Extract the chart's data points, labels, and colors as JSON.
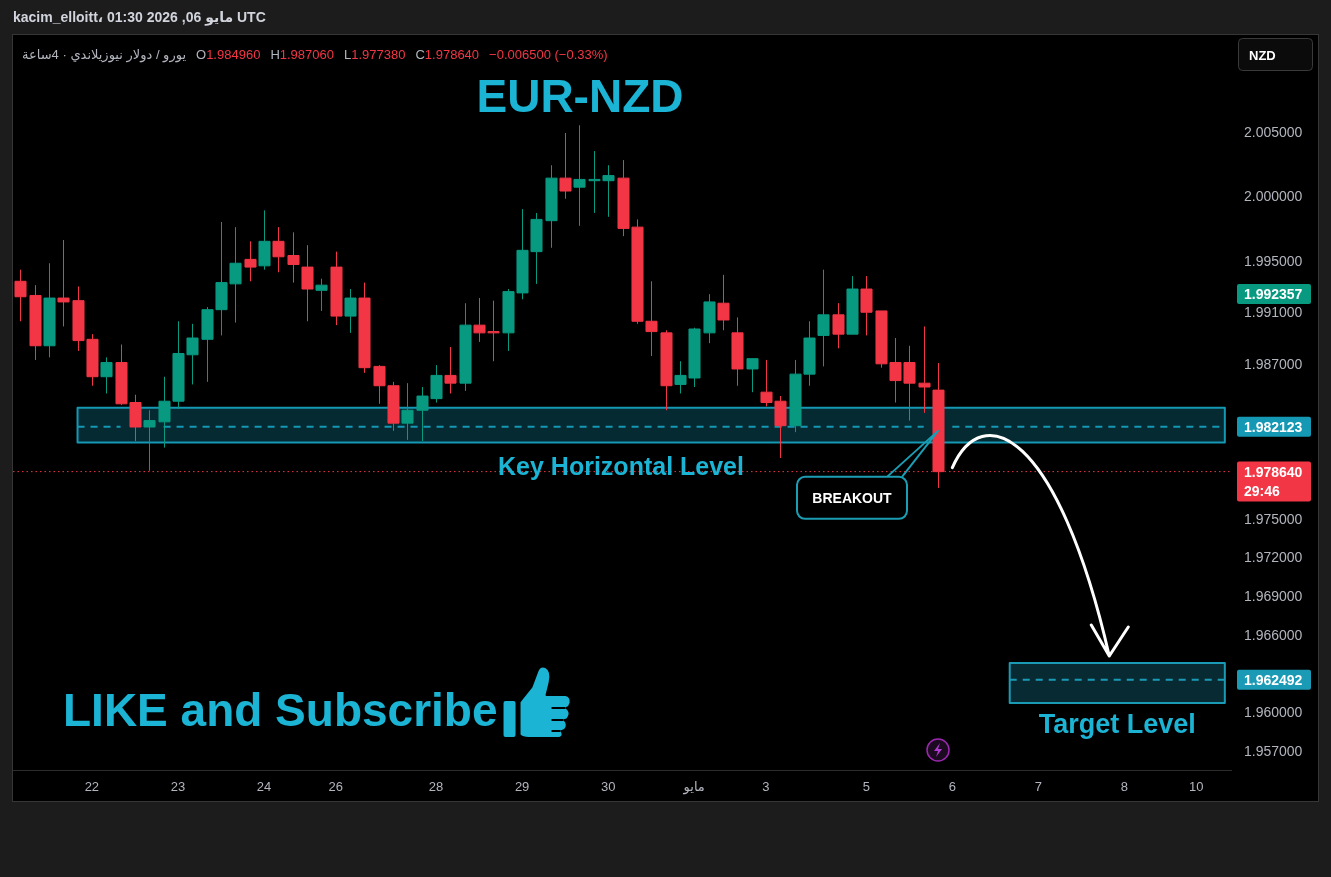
{
  "chart_data": {
    "type": "candlestick",
    "title": "EUR-NZD",
    "subtitle": "يورو / دولار نيوزيلاندي · 4ساعة",
    "ylabel": "NZD",
    "categories": [
      null,
      null,
      null,
      null,
      null,
      "22",
      null,
      null,
      null,
      null,
      null,
      "23",
      null,
      null,
      null,
      null,
      null,
      "24",
      null,
      null,
      null,
      null,
      "26",
      null,
      null,
      null,
      null,
      null,
      null,
      "28",
      null,
      null,
      null,
      null,
      null,
      "29",
      null,
      null,
      null,
      null,
      null,
      "30",
      null,
      null,
      null,
      null,
      null,
      "مايو",
      null,
      null,
      null,
      null,
      "3",
      null,
      null,
      null,
      null,
      null,
      null,
      "5",
      null,
      null,
      null,
      null,
      null,
      "6",
      null,
      null,
      null,
      null,
      null,
      "7",
      null,
      null,
      null,
      null,
      null,
      "8",
      null,
      null,
      null,
      null,
      "10",
      null,
      null
    ],
    "ohlc": [
      [
        1.9934,
        1.9943,
        1.9903,
        1.9922
      ],
      [
        1.9923,
        1.9931,
        1.9873,
        1.9884
      ],
      [
        1.9884,
        1.9948,
        1.9875,
        1.9921
      ],
      [
        1.9921,
        1.9966,
        1.9899,
        1.9918
      ],
      [
        1.9919,
        1.993,
        1.988,
        1.9888
      ],
      [
        1.9889,
        1.9893,
        1.9853,
        1.986
      ],
      [
        1.986,
        1.9875,
        1.9847,
        1.9871
      ],
      [
        1.9871,
        1.9885,
        1.9838,
        1.9839
      ],
      [
        1.984,
        1.9846,
        1.981,
        1.9821
      ],
      [
        1.9821,
        1.9834,
        1.9787,
        1.9826
      ],
      [
        1.9825,
        1.986,
        1.9805,
        1.9841
      ],
      [
        1.9841,
        1.9903,
        1.9835,
        1.9878
      ],
      [
        1.9877,
        1.9901,
        1.9854,
        1.989
      ],
      [
        1.9889,
        1.9914,
        1.9856,
        1.9912
      ],
      [
        1.9912,
        1.998,
        1.9892,
        1.9933
      ],
      [
        1.9932,
        1.9976,
        1.9902,
        1.9948
      ],
      [
        1.9951,
        1.9965,
        1.9934,
        1.9945
      ],
      [
        1.9946,
        1.9989,
        1.9943,
        1.9965
      ],
      [
        1.9965,
        1.9976,
        1.9941,
        1.9953
      ],
      [
        1.9954,
        1.9972,
        1.9933,
        1.9947
      ],
      [
        1.9945,
        1.9962,
        1.9903,
        1.9928
      ],
      [
        1.9927,
        1.9936,
        1.9911,
        1.9931
      ],
      [
        1.9945,
        1.9957,
        1.99,
        1.9907
      ],
      [
        1.9907,
        1.9928,
        1.9894,
        1.9921
      ],
      [
        1.9921,
        1.9933,
        1.9863,
        1.9867
      ],
      [
        1.9868,
        1.9869,
        1.9839,
        1.9853
      ],
      [
        1.9853,
        1.9856,
        1.9818,
        1.9824
      ],
      [
        1.9824,
        1.9855,
        1.9811,
        1.9834
      ],
      [
        1.9834,
        1.9852,
        1.981,
        1.9845
      ],
      [
        1.9843,
        1.9869,
        1.984,
        1.9861
      ],
      [
        1.9861,
        1.9883,
        1.9847,
        1.9855
      ],
      [
        1.9855,
        1.9917,
        1.9849,
        1.99
      ],
      [
        1.99,
        1.9921,
        1.9887,
        1.9894
      ],
      [
        1.9895,
        1.9919,
        1.9872,
        1.9894
      ],
      [
        1.9894,
        1.9928,
        1.988,
        1.9926
      ],
      [
        1.9925,
        1.999,
        1.992,
        1.9958
      ],
      [
        1.9957,
        1.9987,
        1.9932,
        1.9982
      ],
      [
        1.9981,
        2.0024,
        1.996,
        2.0014
      ],
      [
        2.0014,
        2.0049,
        1.9998,
        2.0004
      ],
      [
        2.0007,
        2.0055,
        1.9977,
        2.0013
      ],
      [
        2.0012,
        2.0035,
        1.9987,
        2.0013
      ],
      [
        2.0012,
        2.0024,
        1.9984,
        2.0016
      ],
      [
        2.0014,
        2.0028,
        1.9969,
        1.9975
      ],
      [
        1.9976,
        1.9982,
        1.9901,
        1.9903
      ],
      [
        1.9903,
        1.9934,
        1.9876,
        1.9895
      ],
      [
        1.9894,
        1.9896,
        1.9834,
        1.9853
      ],
      [
        1.9854,
        1.9872,
        1.9847,
        1.9861
      ],
      [
        1.9859,
        1.9898,
        1.9852,
        1.9897
      ],
      [
        1.9894,
        1.9924,
        1.9886,
        1.9918
      ],
      [
        1.9917,
        1.9939,
        1.9896,
        1.9904
      ],
      [
        1.9894,
        1.9906,
        1.9853,
        1.9866
      ],
      [
        1.9866,
        1.9874,
        1.9848,
        1.9874
      ],
      [
        1.9848,
        1.9873,
        1.9837,
        1.984
      ],
      [
        1.9841,
        1.9845,
        1.9797,
        1.9822
      ],
      [
        1.9822,
        1.9873,
        1.9817,
        1.9862
      ],
      [
        1.9862,
        1.9903,
        1.9853,
        1.989
      ],
      [
        1.9892,
        1.9943,
        1.9868,
        1.9908
      ],
      [
        1.9908,
        1.9917,
        1.9882,
        1.9893
      ],
      [
        1.9893,
        1.9938,
        1.9893,
        1.9928
      ],
      [
        1.9928,
        1.9938,
        1.9892,
        1.991
      ],
      [
        1.9911,
        1.9911,
        1.9867,
        1.987
      ],
      [
        1.9871,
        1.989,
        1.984,
        1.9857
      ],
      [
        1.9871,
        1.9884,
        1.9826,
        1.9855
      ],
      [
        1.9855,
        1.9899,
        1.9832,
        1.9852
      ],
      [
        1.98496,
        1.98706,
        1.97738,
        1.97864
      ],
      null,
      null,
      null,
      null,
      null,
      null,
      null,
      null,
      null,
      null,
      null,
      null,
      null,
      null,
      null,
      null,
      null,
      null,
      null,
      null
    ],
    "colors": [
      "#f23645",
      "#f23645",
      "#089981",
      "#f23645",
      "#f23645",
      "#f23645",
      "#089981",
      "#f23645",
      "#f23645",
      "#089981",
      "#089981",
      "#089981",
      "#089981",
      "#089981",
      "#089981",
      "#089981",
      "#f23645",
      "#089981",
      "#f23645",
      "#f23645",
      "#f23645",
      "#089981",
      "#f23645",
      "#089981",
      "#f23645",
      "#f23645",
      "#f23645",
      "#089981",
      "#089981",
      "#089981",
      "#f23645",
      "#089981",
      "#f23645",
      "#f23645",
      "#089981",
      "#089981",
      "#089981",
      "#089981",
      "#f23645",
      "#089981",
      "#089981",
      "#089981",
      "#f23645",
      "#f23645",
      "#f23645",
      "#f23645",
      "#089981",
      "#089981",
      "#089981",
      "#f23645",
      "#f23645",
      "#089981",
      "#f23645",
      "#f23645",
      "#089981",
      "#089981",
      "#089981",
      "#f23645",
      "#089981",
      "#f23645",
      "#f23645",
      "#f23645",
      "#f23645",
      "#f23645",
      "#f23645",
      null,
      null,
      null,
      null,
      null,
      null,
      null,
      null,
      null,
      null,
      null,
      null,
      null,
      null,
      null,
      null,
      null,
      null,
      null,
      null
    ],
    "ylim": [
      1.9555,
      2.0125
    ],
    "yticks": [
      {
        "value": 2.005,
        "label": "2.005000"
      },
      {
        "value": 2.0,
        "label": "2.000000"
      },
      {
        "value": 1.995,
        "label": "1.995000"
      },
      {
        "value": 1.991,
        "label": "1.991000"
      },
      {
        "value": 1.987,
        "label": "1.987000"
      },
      {
        "value": 1.975,
        "label": "1.975000"
      },
      {
        "value": 1.972,
        "label": "1.972000"
      },
      {
        "value": 1.969,
        "label": "1.969000"
      },
      {
        "value": 1.966,
        "label": "1.966000"
      },
      {
        "value": 1.96,
        "label": "1.960000"
      },
      {
        "value": 1.957,
        "label": "1.957000"
      }
    ],
    "series": [
      {
        "type": "line",
        "color": "#1598b4",
        "line_style": "dashed",
        "values": [
          null,
          null,
          null,
          null,
          1.982123,
          1.982123,
          1.982123,
          1.982123,
          null,
          null,
          1.982123,
          1.982123,
          1.982123,
          1.982123,
          1.982123,
          1.982123,
          1.982123,
          1.982123,
          1.982123,
          1.982123,
          1.982123,
          1.982123,
          1.982123,
          1.982123,
          1.982123,
          1.982123,
          1.982123,
          1.982123,
          1.982123,
          1.982123,
          1.982123,
          1.982123,
          1.982123,
          1.982123,
          1.982123,
          1.982123,
          1.982123,
          1.982123,
          1.982123,
          1.982123,
          1.982123,
          1.982123,
          1.982123,
          1.982123,
          1.982123,
          1.982123,
          1.982123,
          1.982123,
          1.982123,
          1.982123,
          1.982123,
          1.982123,
          1.982123,
          1.982123,
          1.982123,
          1.982123,
          1.982123,
          1.982123,
          1.982123,
          1.982123,
          1.982123,
          1.982123,
          1.982123,
          1.982123,
          null,
          1.982123,
          1.982123,
          1.982123,
          1.982123,
          1.982123,
          1.982123,
          1.982123,
          1.982123,
          1.982123,
          1.982123,
          1.982123,
          1.982123,
          1.982123,
          1.982123,
          1.982123,
          1.982123,
          1.982123,
          1.982123,
          1.982123,
          1.982123
        ],
        "lower": [
          null,
          null,
          null,
          null,
          1.9809,
          1.9809,
          1.9809,
          1.9809,
          1.9809,
          1.9809,
          1.9809,
          1.9809,
          1.9809,
          1.9809,
          1.9809,
          1.9809,
          1.9809,
          1.9809,
          1.9809,
          1.9809,
          1.9809,
          1.9809,
          1.9809,
          1.9809,
          1.9809,
          1.9809,
          1.9809,
          1.9809,
          1.9809,
          1.9809,
          1.9809,
          1.9809,
          1.9809,
          1.9809,
          1.9809,
          1.9809,
          1.9809,
          1.9809,
          1.9809,
          1.9809,
          1.9809,
          1.9809,
          1.9809,
          1.9809,
          1.9809,
          1.9809,
          1.9809,
          1.9809,
          1.9809,
          1.9809,
          1.9809,
          1.9809,
          1.9809,
          1.9809,
          1.9809,
          1.9809,
          1.9809,
          1.9809,
          1.9809,
          1.9809,
          1.9809,
          1.9809,
          1.9809,
          1.9809,
          1.9809,
          1.9809,
          1.9809,
          1.9809,
          1.9809,
          1.9809,
          1.9809,
          1.9809,
          1.9809,
          1.9809,
          1.9809,
          1.9809,
          1.9809,
          1.9809,
          1.9809,
          1.9809,
          1.9809,
          1.9809,
          1.9809,
          1.9809,
          1.9809
        ],
        "upper": [
          null,
          null,
          null,
          null,
          1.9836,
          1.9836,
          1.9836,
          1.9836,
          1.9836,
          1.9836,
          1.9836,
          1.9836,
          1.9836,
          1.9836,
          1.9836,
          1.9836,
          1.9836,
          1.9836,
          1.9836,
          1.9836,
          1.9836,
          1.9836,
          1.9836,
          1.9836,
          1.9836,
          1.9836,
          1.9836,
          1.9836,
          1.9836,
          1.9836,
          1.9836,
          1.9836,
          1.9836,
          1.9836,
          1.9836,
          1.9836,
          1.9836,
          1.9836,
          1.9836,
          1.9836,
          1.9836,
          1.9836,
          1.9836,
          1.9836,
          1.9836,
          1.9836,
          1.9836,
          1.9836,
          1.9836,
          1.9836,
          1.9836,
          1.9836,
          1.9836,
          1.9836,
          1.9836,
          1.9836,
          1.9836,
          1.9836,
          1.9836,
          1.9836,
          1.9836,
          1.9836,
          1.9836,
          1.9836,
          1.9836,
          1.9836,
          1.9836,
          1.9836,
          1.9836,
          1.9836,
          1.9836,
          1.9836,
          1.9836,
          1.9836,
          1.9836,
          1.9836,
          1.9836,
          1.9836,
          1.9836,
          1.9836,
          1.9836,
          1.9836,
          1.9836,
          1.9836,
          1.9836
        ],
        "value_labels": [
          null,
          null,
          null,
          null,
          null,
          null,
          null,
          null,
          null,
          null,
          null,
          null,
          null,
          null,
          null,
          null,
          null,
          null,
          null,
          null,
          null,
          null,
          null,
          null,
          null,
          null,
          null,
          null,
          null,
          null,
          null,
          null,
          null,
          null,
          null,
          null,
          null,
          null,
          null,
          null,
          null,
          null,
          null,
          null,
          null,
          null,
          null,
          null,
          null,
          null,
          null,
          null,
          null,
          null,
          null,
          null,
          null,
          null,
          null,
          null,
          null,
          null,
          null,
          null,
          null,
          null,
          null,
          null,
          null,
          null,
          null,
          null,
          null,
          null,
          null,
          null,
          null,
          null,
          null,
          null,
          null,
          null,
          null,
          null,
          "1.982123"
        ]
      },
      {
        "type": "line",
        "color": "#1b9ab6",
        "line_style": "dashed",
        "values": [
          null,
          null,
          null,
          null,
          null,
          null,
          null,
          null,
          null,
          null,
          null,
          null,
          null,
          null,
          null,
          null,
          null,
          null,
          null,
          null,
          null,
          null,
          null,
          null,
          null,
          null,
          null,
          null,
          null,
          null,
          null,
          null,
          null,
          null,
          null,
          null,
          null,
          null,
          null,
          null,
          null,
          null,
          null,
          null,
          null,
          null,
          null,
          null,
          null,
          null,
          null,
          null,
          null,
          null,
          null,
          null,
          null,
          null,
          null,
          null,
          null,
          null,
          null,
          null,
          null,
          null,
          null,
          null,
          null,
          1.962492,
          1.962492,
          1.962492,
          1.962492,
          1.962492,
          1.962492,
          1.962492,
          1.962492,
          1.962492,
          1.962492,
          1.962492,
          1.962492,
          1.962492,
          1.962492,
          1.962492,
          1.962492
        ],
        "lower": [
          null,
          null,
          null,
          null,
          null,
          null,
          null,
          null,
          null,
          null,
          null,
          null,
          null,
          null,
          null,
          null,
          null,
          null,
          null,
          null,
          null,
          null,
          null,
          null,
          null,
          null,
          null,
          null,
          null,
          null,
          null,
          null,
          null,
          null,
          null,
          null,
          null,
          null,
          null,
          null,
          null,
          null,
          null,
          null,
          null,
          null,
          null,
          null,
          null,
          null,
          null,
          null,
          null,
          null,
          null,
          null,
          null,
          null,
          null,
          null,
          null,
          null,
          null,
          null,
          null,
          null,
          null,
          null,
          null,
          1.9607,
          1.9607,
          1.9607,
          1.9607,
          1.9607,
          1.9607,
          1.9607,
          1.9607,
          1.9607,
          1.9607,
          1.9607,
          1.9607,
          1.9607,
          1.9607,
          1.9607,
          1.9607
        ],
        "upper": [
          null,
          null,
          null,
          null,
          null,
          null,
          null,
          null,
          null,
          null,
          null,
          null,
          null,
          null,
          null,
          null,
          null,
          null,
          null,
          null,
          null,
          null,
          null,
          null,
          null,
          null,
          null,
          null,
          null,
          null,
          null,
          null,
          null,
          null,
          null,
          null,
          null,
          null,
          null,
          null,
          null,
          null,
          null,
          null,
          null,
          null,
          null,
          null,
          null,
          null,
          null,
          null,
          null,
          null,
          null,
          null,
          null,
          null,
          null,
          null,
          null,
          null,
          null,
          null,
          null,
          null,
          null,
          null,
          null,
          1.9638,
          1.9638,
          1.9638,
          1.9638,
          1.9638,
          1.9638,
          1.9638,
          1.9638,
          1.9638,
          1.9638,
          1.9638,
          1.9638,
          1.9638,
          1.9638,
          1.9638,
          1.9638
        ],
        "value_labels": [
          null,
          null,
          null,
          null,
          null,
          null,
          null,
          null,
          null,
          null,
          null,
          null,
          null,
          null,
          null,
          null,
          null,
          null,
          null,
          null,
          null,
          null,
          null,
          null,
          null,
          null,
          null,
          null,
          null,
          null,
          null,
          null,
          null,
          null,
          null,
          null,
          null,
          null,
          null,
          null,
          null,
          null,
          null,
          null,
          null,
          null,
          null,
          null,
          null,
          null,
          null,
          null,
          null,
          null,
          null,
          null,
          null,
          null,
          null,
          null,
          null,
          null,
          null,
          null,
          null,
          null,
          null,
          null,
          null,
          null,
          null,
          null,
          null,
          null,
          null,
          null,
          null,
          null,
          null,
          null,
          null,
          null,
          null,
          null,
          "1.962492"
        ]
      }
    ],
    "ref_lines": [
      {
        "axis": "y",
        "value": 1.97864,
        "label": "1.978640\n29:46",
        "color": "#f23645",
        "line_style": "dotted"
      }
    ],
    "annotations": [
      "kacim_elloitt، مايو 06, 2026 01:30 UTC",
      "O1.984960",
      "H1.987060",
      "L1.977380",
      "C1.978640",
      "−0.006500 (−0.33%)",
      "LIKE and Subscribe",
      "Key Horizontal Level",
      "Target Level",
      "BREAKOUT",
      "1.992357"
    ]
  }
}
